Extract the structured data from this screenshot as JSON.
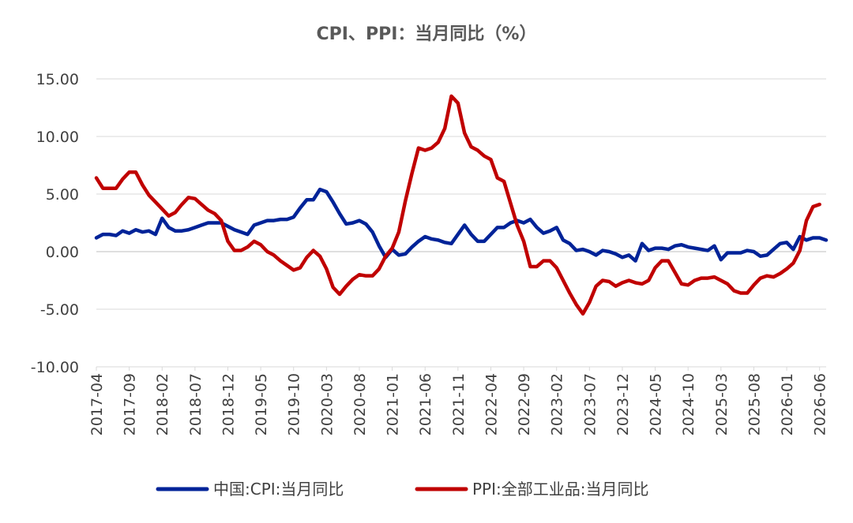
{
  "chart_data": {
    "type": "line",
    "title": "CPI、PPI：当月同比（%）",
    "xlabel": "",
    "ylabel": "",
    "ylim": [
      -10,
      15
    ],
    "y_ticks": [
      "15.00",
      "10.00",
      "5.00",
      "0.00",
      "-5.00",
      "-10.00"
    ],
    "y_tick_values": [
      15,
      10,
      5,
      0,
      -5,
      -10
    ],
    "x_start": "2017-04",
    "x_tick_labels": [
      "2017-04",
      "2017-09",
      "2018-02",
      "2018-07",
      "2018-12",
      "2019-05",
      "2019-10",
      "2020-03",
      "2020-08",
      "2021-01",
      "2021-06",
      "2021-11",
      "2022-04",
      "2022-09",
      "2023-02",
      "2023-07",
      "2023-12",
      "2024-05",
      "2024-10",
      "2025-03",
      "2025-08",
      "2026-01",
      "2026-06"
    ],
    "grid": true,
    "legend_position": "bottom",
    "series": [
      {
        "name": "中国:CPI:当月同比",
        "color": "#002398",
        "values": [
          1.2,
          1.5,
          1.5,
          1.4,
          1.8,
          1.6,
          1.9,
          1.7,
          1.8,
          1.5,
          2.9,
          2.1,
          1.8,
          1.8,
          1.9,
          2.1,
          2.3,
          2.5,
          2.5,
          2.5,
          2.2,
          1.9,
          1.7,
          1.5,
          2.3,
          2.5,
          2.7,
          2.7,
          2.8,
          2.8,
          3.0,
          3.8,
          4.5,
          4.5,
          5.4,
          5.2,
          4.3,
          3.3,
          2.4,
          2.5,
          2.7,
          2.4,
          1.7,
          0.5,
          -0.5,
          0.2,
          -0.3,
          -0.2,
          0.4,
          0.9,
          1.3,
          1.1,
          1.0,
          0.8,
          0.7,
          1.5,
          2.3,
          1.5,
          0.9,
          0.9,
          1.5,
          2.1,
          2.1,
          2.5,
          2.7,
          2.5,
          2.8,
          2.1,
          1.6,
          1.8,
          2.1,
          1.0,
          0.7,
          0.1,
          0.2,
          0.0,
          -0.3,
          0.1,
          0.0,
          -0.2,
          -0.5,
          -0.3,
          -0.8,
          0.7,
          0.1,
          0.3,
          0.3,
          0.2,
          0.5,
          0.6,
          0.4,
          0.3,
          0.2,
          0.1,
          0.5,
          -0.7,
          -0.1,
          -0.1,
          -0.1,
          0.1,
          0.0,
          -0.4,
          -0.3,
          0.2,
          0.7,
          0.8,
          0.2,
          1.3,
          1.0,
          1.2,
          1.2,
          1.0
        ]
      },
      {
        "name": "PPI:全部工业品:当月同比",
        "color": "#C00000",
        "values": [
          6.4,
          5.5,
          5.5,
          5.5,
          6.3,
          6.9,
          6.9,
          5.8,
          4.9,
          4.3,
          3.7,
          3.1,
          3.4,
          4.1,
          4.7,
          4.6,
          4.1,
          3.6,
          3.3,
          2.7,
          0.9,
          0.1,
          0.1,
          0.4,
          0.9,
          0.6,
          0.0,
          -0.3,
          -0.8,
          -1.2,
          -1.6,
          -1.4,
          -0.5,
          0.1,
          -0.4,
          -1.5,
          -3.1,
          -3.7,
          -3.0,
          -2.4,
          -2.0,
          -2.1,
          -2.1,
          -1.5,
          -0.4,
          0.3,
          1.7,
          4.4,
          6.8,
          9.0,
          8.8,
          9.0,
          9.5,
          10.7,
          13.5,
          12.9,
          10.3,
          9.1,
          8.8,
          8.3,
          8.0,
          6.4,
          6.1,
          4.2,
          2.3,
          0.9,
          -1.3,
          -1.3,
          -0.8,
          -0.8,
          -1.4,
          -2.5,
          -3.6,
          -4.6,
          -5.4,
          -4.4,
          -3.0,
          -2.5,
          -2.6,
          -3.0,
          -2.7,
          -2.5,
          -2.7,
          -2.8,
          -2.5,
          -1.4,
          -0.8,
          -0.8,
          -1.8,
          -2.8,
          -2.9,
          -2.5,
          -2.3,
          -2.3,
          -2.2,
          -2.5,
          -2.8,
          -3.4,
          -3.6,
          -3.6,
          -2.9,
          -2.3,
          -2.1,
          -2.2,
          -1.9,
          -1.5,
          -1.0,
          0.1,
          2.7,
          3.9,
          4.1
        ]
      }
    ]
  }
}
